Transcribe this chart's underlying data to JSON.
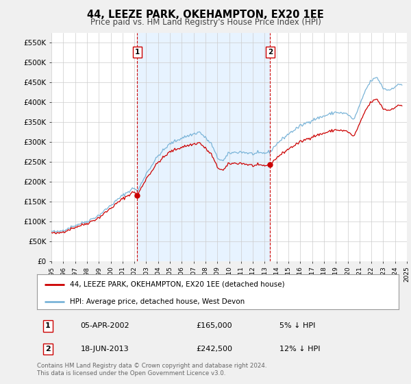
{
  "title": "44, LEEZE PARK, OKEHAMPTON, EX20 1EE",
  "subtitle": "Price paid vs. HM Land Registry's House Price Index (HPI)",
  "legend_line1": "44, LEEZE PARK, OKEHAMPTON, EX20 1EE (detached house)",
  "legend_line2": "HPI: Average price, detached house, West Devon",
  "transaction1_date": "05-APR-2002",
  "transaction1_price": "£165,000",
  "transaction1_hpi": "5% ↓ HPI",
  "transaction2_date": "18-JUN-2013",
  "transaction2_price": "£242,500",
  "transaction2_hpi": "12% ↓ HPI",
  "footnote": "Contains HM Land Registry data © Crown copyright and database right 2024.\nThis data is licensed under the Open Government Licence v3.0.",
  "hpi_color": "#7ab4d8",
  "price_color": "#cc0000",
  "vline_color": "#cc0000",
  "shade_color": "#ddeeff",
  "background_color": "#f0f0f0",
  "plot_bg_color": "#ffffff",
  "ylim_min": 0,
  "ylim_max": 575000,
  "yticks": [
    0,
    50000,
    100000,
    150000,
    200000,
    250000,
    300000,
    350000,
    400000,
    450000,
    500000,
    550000
  ],
  "ytick_labels": [
    "£0",
    "£50K",
    "£100K",
    "£150K",
    "£200K",
    "£250K",
    "£300K",
    "£350K",
    "£400K",
    "£450K",
    "£500K",
    "£550K"
  ],
  "xmin_year": 1995,
  "xmax_year": 2025,
  "xtick_years": [
    1995,
    1996,
    1997,
    1998,
    1999,
    2000,
    2001,
    2002,
    2003,
    2004,
    2005,
    2006,
    2007,
    2008,
    2009,
    2010,
    2011,
    2012,
    2013,
    2014,
    2015,
    2016,
    2017,
    2018,
    2019,
    2020,
    2021,
    2022,
    2023,
    2024,
    2025
  ],
  "vline1_year": 2002.25,
  "vline2_year": 2013.46,
  "marker1_price": 165000,
  "marker2_price": 242500
}
